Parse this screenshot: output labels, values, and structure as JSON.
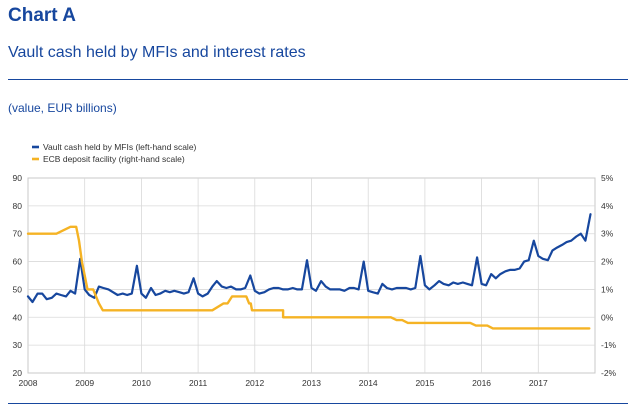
{
  "header": {
    "label": "Chart A",
    "title": "Vault cash held by MFIs and interest rates",
    "subtitle": "(value, EUR billions)"
  },
  "chart_data": {
    "type": "line",
    "xlim": [
      2008,
      2018
    ],
    "x_ticks": [
      "2008",
      "2009",
      "2010",
      "2011",
      "2012",
      "2013",
      "2014",
      "2015",
      "2016",
      "2017"
    ],
    "left_axis": {
      "ylim": [
        20,
        90
      ],
      "ticks": [
        "20",
        "30",
        "40",
        "50",
        "60",
        "70",
        "80",
        "90"
      ]
    },
    "right_axis": {
      "ylim": [
        -2,
        5
      ],
      "ticks": [
        "-2%",
        "-1%",
        "0%",
        "1%",
        "2%",
        "3%",
        "4%",
        "5%"
      ]
    },
    "grid": true,
    "legend_position": "top-left",
    "series": [
      {
        "name": "Vault cash held by MFIs (left-hand scale)",
        "axis": "left",
        "color": "#17479e",
        "x": [
          2008.0,
          2008.08,
          2008.17,
          2008.25,
          2008.33,
          2008.42,
          2008.5,
          2008.58,
          2008.67,
          2008.75,
          2008.83,
          2008.92,
          2009.0,
          2009.08,
          2009.17,
          2009.25,
          2009.33,
          2009.42,
          2009.5,
          2009.58,
          2009.67,
          2009.75,
          2009.83,
          2009.92,
          2010.0,
          2010.08,
          2010.17,
          2010.25,
          2010.33,
          2010.42,
          2010.5,
          2010.58,
          2010.67,
          2010.75,
          2010.83,
          2010.92,
          2011.0,
          2011.08,
          2011.17,
          2011.25,
          2011.33,
          2011.42,
          2011.5,
          2011.58,
          2011.67,
          2011.75,
          2011.83,
          2011.92,
          2012.0,
          2012.08,
          2012.17,
          2012.25,
          2012.33,
          2012.42,
          2012.5,
          2012.58,
          2012.67,
          2012.75,
          2012.83,
          2012.92,
          2013.0,
          2013.08,
          2013.17,
          2013.25,
          2013.33,
          2013.42,
          2013.5,
          2013.58,
          2013.67,
          2013.75,
          2013.83,
          2013.92,
          2014.0,
          2014.08,
          2014.17,
          2014.25,
          2014.33,
          2014.42,
          2014.5,
          2014.58,
          2014.67,
          2014.75,
          2014.83,
          2014.92,
          2015.0,
          2015.08,
          2015.17,
          2015.25,
          2015.33,
          2015.42,
          2015.5,
          2015.58,
          2015.67,
          2015.75,
          2015.83,
          2015.92,
          2016.0,
          2016.08,
          2016.17,
          2016.25,
          2016.33,
          2016.42,
          2016.5,
          2016.58,
          2016.67,
          2016.75,
          2016.83,
          2016.92,
          2017.0,
          2017.08,
          2017.17,
          2017.25,
          2017.33,
          2017.42,
          2017.5,
          2017.58,
          2017.67,
          2017.75,
          2017.83,
          2017.92
        ],
        "values": [
          47.5,
          45.5,
          48.5,
          48.5,
          46.5,
          47.0,
          48.5,
          48.0,
          47.5,
          49.5,
          48.5,
          61.0,
          50.0,
          48.0,
          47.0,
          51.0,
          50.5,
          50.0,
          49.0,
          48.0,
          48.5,
          48.0,
          48.5,
          58.5,
          48.5,
          47.0,
          50.5,
          48.0,
          48.5,
          49.5,
          49.0,
          49.5,
          49.0,
          48.5,
          49.0,
          54.0,
          48.5,
          47.5,
          48.5,
          51.0,
          53.0,
          51.0,
          50.5,
          51.0,
          50.0,
          50.0,
          50.5,
          55.0,
          49.5,
          48.5,
          49.0,
          50.0,
          50.5,
          50.5,
          50.0,
          50.0,
          50.5,
          50.0,
          50.0,
          60.5,
          50.5,
          49.5,
          53.0,
          51.0,
          50.0,
          50.0,
          50.0,
          49.5,
          50.5,
          50.5,
          50.0,
          60.0,
          49.5,
          49.0,
          48.5,
          52.0,
          50.5,
          50.0,
          50.5,
          50.5,
          50.5,
          50.0,
          50.5,
          62.0,
          51.5,
          50.0,
          51.5,
          53.0,
          52.0,
          51.5,
          52.5,
          52.0,
          52.5,
          52.0,
          51.5,
          61.5,
          52.0,
          51.5,
          55.5,
          54.0,
          55.5,
          56.5,
          57.0,
          57.0,
          57.5,
          60.0,
          60.5,
          67.5,
          62.0,
          61.0,
          60.5,
          64.0,
          65.0,
          66.0,
          67.0,
          67.5,
          69.0,
          70.0,
          67.5,
          77.0
        ]
      },
      {
        "name": "ECB deposit facility (right-hand scale)",
        "axis": "right",
        "color": "#f5b324",
        "step": true,
        "x": [
          2008.0,
          2008.5,
          2008.75,
          2008.8,
          2008.85,
          2008.9,
          2008.95,
          2009.05,
          2009.15,
          2009.25,
          2009.32,
          2009.38,
          2009.42,
          2009.5,
          2011.0,
          2011.25,
          2011.45,
          2011.52,
          2011.6,
          2011.85,
          2011.9,
          2011.93,
          2011.95,
          2012.0,
          2012.5,
          2012.5,
          2012.55,
          2013.5,
          2014.3,
          2014.4,
          2014.5,
          2014.6,
          2014.7,
          2014.8,
          2015.0,
          2015.8,
          2015.9,
          2016.0,
          2016.1,
          2016.2,
          2016.3,
          2017.9
        ],
        "values": [
          3.0,
          3.0,
          3.25,
          3.25,
          3.25,
          2.75,
          2.0,
          1.0,
          1.0,
          0.5,
          0.25,
          0.25,
          0.25,
          0.25,
          0.25,
          0.25,
          0.5,
          0.5,
          0.75,
          0.75,
          0.5,
          0.5,
          0.25,
          0.25,
          0.25,
          0.0,
          0.0,
          0.0,
          0.0,
          0.0,
          -0.1,
          -0.1,
          -0.2,
          -0.2,
          -0.2,
          -0.2,
          -0.3,
          -0.3,
          -0.3,
          -0.4,
          -0.4,
          -0.4
        ]
      }
    ]
  }
}
